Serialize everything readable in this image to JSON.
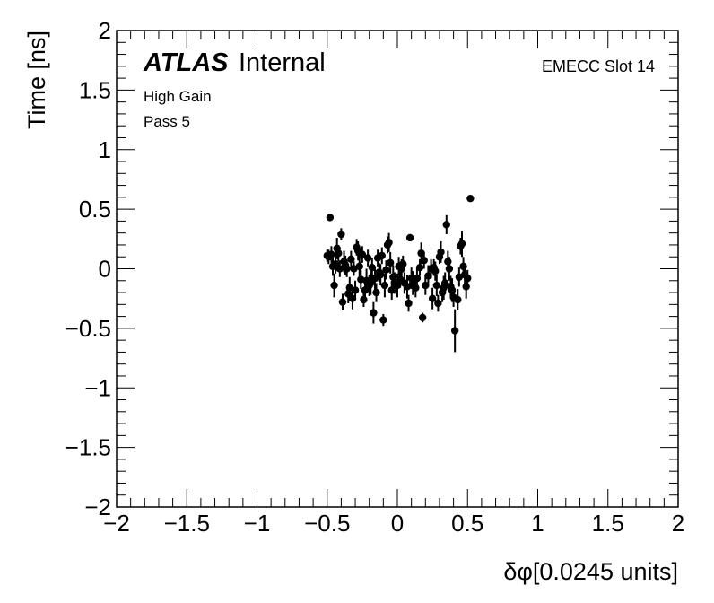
{
  "chart_data": {
    "type": "scatter",
    "title": "",
    "xlabel": "δφ[0.0245 units]",
    "ylabel": "Time [ns]",
    "xlim": [
      -2,
      2
    ],
    "ylim": [
      -2,
      2
    ],
    "x_ticks": [
      -2,
      -1.5,
      -1,
      -0.5,
      0,
      0.5,
      1,
      1.5,
      2
    ],
    "y_ticks": [
      -2,
      -1.5,
      -1,
      -0.5,
      0,
      0.5,
      1,
      1.5,
      2
    ],
    "x_tick_labels": [
      "−2",
      "−1.5",
      "−1",
      "−0.5",
      "0",
      "0.5",
      "1",
      "1.5",
      "2"
    ],
    "y_tick_labels": [
      "−2",
      "−1.5",
      "−1",
      "−0.5",
      "0",
      "0.5",
      "1",
      "1.5",
      "2"
    ],
    "grid": false,
    "marker_color": "#000000",
    "annotations": {
      "atlas": "ATLAS",
      "internal": "Internal",
      "gain": "High Gain",
      "pass": "Pass 5",
      "slot": "EMECC Slot 14"
    },
    "series": [
      {
        "points": [
          {
            "x": -0.5,
            "y": 0.11,
            "err": 0.05
          },
          {
            "x": -0.49,
            "y": 0.1,
            "err": 0.06
          },
          {
            "x": -0.48,
            "y": 0.43,
            "err": 0.0
          },
          {
            "x": -0.47,
            "y": 0.12,
            "err": 0.07
          },
          {
            "x": -0.46,
            "y": 0.02,
            "err": 0.08
          },
          {
            "x": -0.45,
            "y": -0.14,
            "err": 0.1
          },
          {
            "x": -0.44,
            "y": 0.04,
            "err": 0.08
          },
          {
            "x": -0.43,
            "y": 0.17,
            "err": 0.09
          },
          {
            "x": -0.42,
            "y": 0.13,
            "err": 0.07
          },
          {
            "x": -0.41,
            "y": 0.0,
            "err": 0.07
          },
          {
            "x": -0.4,
            "y": 0.29,
            "err": 0.05
          },
          {
            "x": -0.39,
            "y": -0.28,
            "err": 0.07
          },
          {
            "x": -0.38,
            "y": 0.06,
            "err": 0.09
          },
          {
            "x": -0.37,
            "y": 0.03,
            "err": 0.08
          },
          {
            "x": -0.36,
            "y": 0.0,
            "err": 0.07
          },
          {
            "x": -0.35,
            "y": -0.21,
            "err": 0.08
          },
          {
            "x": -0.34,
            "y": -0.16,
            "err": 0.09
          },
          {
            "x": -0.33,
            "y": 0.08,
            "err": 0.07
          },
          {
            "x": -0.32,
            "y": -0.25,
            "err": 0.09
          },
          {
            "x": -0.31,
            "y": 0.0,
            "err": 0.06
          },
          {
            "x": -0.3,
            "y": -0.18,
            "err": 0.08
          },
          {
            "x": -0.29,
            "y": 0.18,
            "err": 0.07
          },
          {
            "x": -0.28,
            "y": 0.15,
            "err": 0.08
          },
          {
            "x": -0.27,
            "y": 0.02,
            "err": 0.09
          },
          {
            "x": -0.26,
            "y": -0.09,
            "err": 0.08
          },
          {
            "x": -0.25,
            "y": 0.12,
            "err": 0.07
          },
          {
            "x": -0.24,
            "y": -0.26,
            "err": 0.06
          },
          {
            "x": -0.23,
            "y": -0.18,
            "err": 0.08
          },
          {
            "x": -0.22,
            "y": -0.1,
            "err": 0.1
          },
          {
            "x": -0.21,
            "y": 0.09,
            "err": 0.07
          },
          {
            "x": -0.2,
            "y": -0.14,
            "err": 0.09
          },
          {
            "x": -0.19,
            "y": -0.12,
            "err": 0.1
          },
          {
            "x": -0.18,
            "y": 0.01,
            "err": 0.08
          },
          {
            "x": -0.17,
            "y": -0.37,
            "err": 0.09
          },
          {
            "x": -0.16,
            "y": -0.08,
            "err": 0.1
          },
          {
            "x": -0.15,
            "y": -0.2,
            "err": 0.08
          },
          {
            "x": -0.14,
            "y": 0.09,
            "err": 0.07
          },
          {
            "x": -0.13,
            "y": -0.03,
            "err": 0.08
          },
          {
            "x": -0.12,
            "y": -0.05,
            "err": 0.09
          },
          {
            "x": -0.11,
            "y": 0.11,
            "err": 0.07
          },
          {
            "x": -0.1,
            "y": -0.43,
            "err": 0.05
          },
          {
            "x": -0.09,
            "y": -0.14,
            "err": 0.1
          },
          {
            "x": -0.08,
            "y": -0.01,
            "err": 0.08
          },
          {
            "x": -0.07,
            "y": 0.2,
            "err": 0.07
          },
          {
            "x": -0.06,
            "y": 0.22,
            "err": 0.08
          },
          {
            "x": -0.05,
            "y": 0.05,
            "err": 0.09
          },
          {
            "x": -0.04,
            "y": -0.18,
            "err": 0.08
          },
          {
            "x": -0.03,
            "y": -0.07,
            "err": 0.1
          },
          {
            "x": -0.02,
            "y": -0.12,
            "err": 0.09
          },
          {
            "x": 0.0,
            "y": -0.14,
            "err": 0.1
          },
          {
            "x": 0.01,
            "y": 0.02,
            "err": 0.08
          },
          {
            "x": 0.02,
            "y": -0.09,
            "err": 0.07
          },
          {
            "x": 0.03,
            "y": 0.0,
            "err": 0.08
          },
          {
            "x": 0.04,
            "y": 0.04,
            "err": 0.07
          },
          {
            "x": 0.05,
            "y": -0.12,
            "err": 0.09
          },
          {
            "x": 0.07,
            "y": -0.15,
            "err": 0.1
          },
          {
            "x": 0.08,
            "y": -0.29,
            "err": 0.07
          },
          {
            "x": 0.09,
            "y": 0.26,
            "err": 0.0
          },
          {
            "x": 0.1,
            "y": -0.08,
            "err": 0.09
          },
          {
            "x": 0.11,
            "y": -0.12,
            "err": 0.1
          },
          {
            "x": 0.13,
            "y": -0.16,
            "err": 0.08
          },
          {
            "x": 0.14,
            "y": -0.08,
            "err": 0.1
          },
          {
            "x": 0.16,
            "y": 0.01,
            "err": 0.07
          },
          {
            "x": 0.17,
            "y": 0.13,
            "err": 0.09
          },
          {
            "x": 0.18,
            "y": -0.41,
            "err": 0.04
          },
          {
            "x": 0.19,
            "y": 0.07,
            "err": 0.07
          },
          {
            "x": 0.2,
            "y": -0.14,
            "err": 0.08
          },
          {
            "x": 0.22,
            "y": -0.06,
            "err": 0.09
          },
          {
            "x": 0.24,
            "y": 0.0,
            "err": 0.08
          },
          {
            "x": 0.25,
            "y": -0.25,
            "err": 0.09
          },
          {
            "x": 0.26,
            "y": 0.01,
            "err": 0.07
          },
          {
            "x": 0.27,
            "y": -0.02,
            "err": 0.08
          },
          {
            "x": 0.28,
            "y": -0.14,
            "err": 0.09
          },
          {
            "x": 0.29,
            "y": -0.29,
            "err": 0.07
          },
          {
            "x": 0.3,
            "y": 0.1,
            "err": 0.06
          },
          {
            "x": 0.31,
            "y": 0.14,
            "err": 0.09
          },
          {
            "x": 0.32,
            "y": -0.2,
            "err": 0.08
          },
          {
            "x": 0.33,
            "y": -0.16,
            "err": 0.1
          },
          {
            "x": 0.34,
            "y": -0.12,
            "err": 0.09
          },
          {
            "x": 0.35,
            "y": 0.37,
            "err": 0.08
          },
          {
            "x": 0.36,
            "y": 0.06,
            "err": 0.09
          },
          {
            "x": 0.37,
            "y": 0.0,
            "err": 0.1
          },
          {
            "x": 0.38,
            "y": -0.15,
            "err": 0.09
          },
          {
            "x": 0.39,
            "y": -0.18,
            "err": 0.1
          },
          {
            "x": 0.4,
            "y": -0.24,
            "err": 0.08
          },
          {
            "x": 0.41,
            "y": -0.52,
            "err": 0.18
          },
          {
            "x": 0.43,
            "y": -0.26,
            "err": 0.09
          },
          {
            "x": 0.44,
            "y": -0.07,
            "err": 0.08
          },
          {
            "x": 0.45,
            "y": 0.19,
            "err": 0.07
          },
          {
            "x": 0.46,
            "y": 0.21,
            "err": 0.11
          },
          {
            "x": 0.47,
            "y": 0.02,
            "err": 0.08
          },
          {
            "x": 0.48,
            "y": -0.05,
            "err": 0.09
          },
          {
            "x": 0.49,
            "y": -0.15,
            "err": 0.1
          },
          {
            "x": 0.5,
            "y": -0.08,
            "err": 0.07
          },
          {
            "x": 0.52,
            "y": 0.59,
            "err": 0.0
          }
        ]
      }
    ]
  }
}
